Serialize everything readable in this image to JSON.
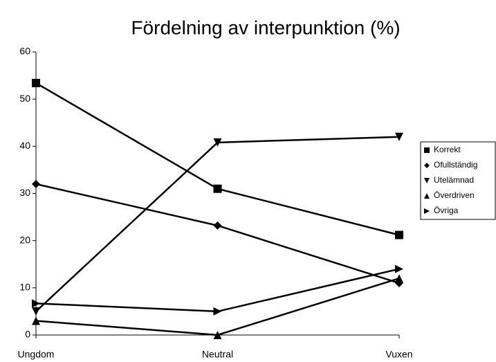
{
  "chart_data": {
    "type": "line",
    "title": "Fördelning av interpunktion (%)",
    "categories": [
      "Ungdom",
      "Neutral",
      "Vuxen"
    ],
    "series": [
      {
        "name": "Korrekt",
        "color": "#000000",
        "marker": "square",
        "values": [
          53.4,
          31,
          21.2
        ]
      },
      {
        "name": "Ofullständig",
        "color": "#000000",
        "marker": "diamond",
        "values": [
          32,
          23.2,
          11
        ]
      },
      {
        "name": "Utelämnad",
        "color": "#000000",
        "marker": "triangle-down",
        "values": [
          5,
          40.8,
          42
        ]
      },
      {
        "name": "Överdriven",
        "color": "#000000",
        "marker": "triangle-up",
        "values": [
          3,
          0,
          12
        ]
      },
      {
        "name": "Övriga",
        "color": "#000000",
        "marker": "triangle-right",
        "values": [
          6.7,
          5,
          14
        ]
      }
    ],
    "ylim": [
      0,
      60
    ],
    "yticks": [
      0,
      10,
      20,
      30,
      40,
      50,
      60
    ],
    "grid": false,
    "legend": "right"
  }
}
